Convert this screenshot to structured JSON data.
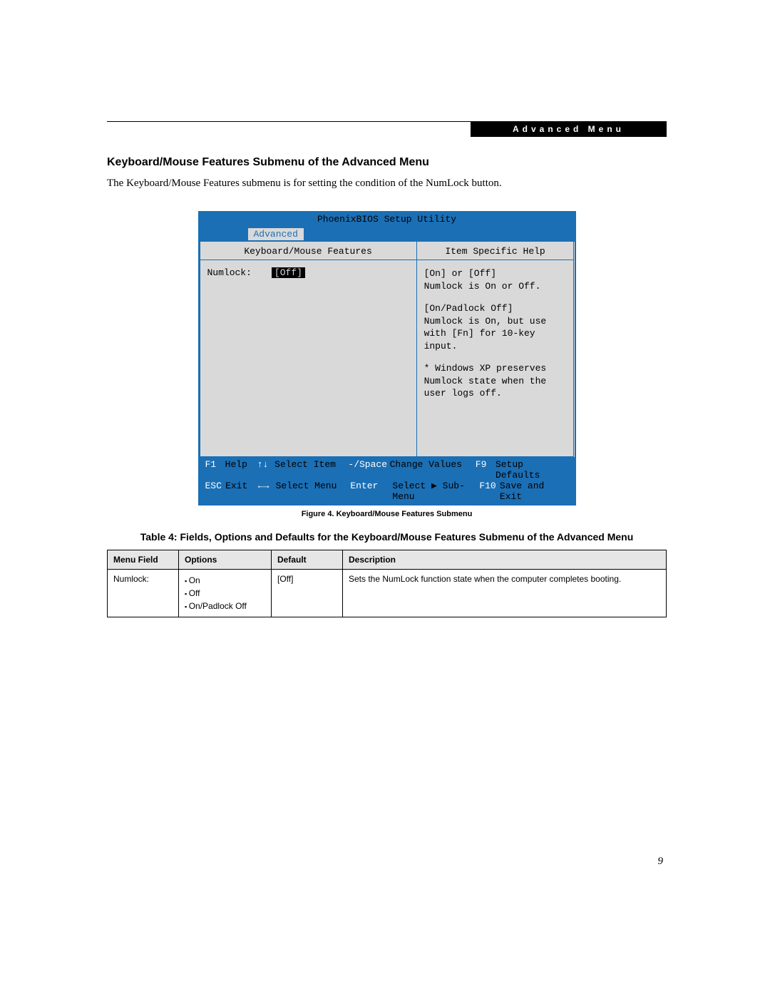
{
  "header": {
    "bar_label": "Advanced Menu"
  },
  "section": {
    "title": "Keyboard/Mouse Features Submenu of the Advanced Menu",
    "intro": "The Keyboard/Mouse Features submenu is for setting the condition of the NumLock button."
  },
  "bios": {
    "title": "PhoenixBIOS Setup Utility",
    "active_tab": "Advanced",
    "left_header": "Keyboard/Mouse Features",
    "right_header": "Item Specific Help",
    "field": {
      "label": "Numlock:",
      "value": "[Off]"
    },
    "help": {
      "block1_line1": "[On] or [Off]",
      "block1_line2": "Numlock is On or Off.",
      "block2_line1": "[On/Padlock Off]",
      "block2_line2": "Numlock is On, but use with [Fn] for 10-key input.",
      "block3": "* Windows XP preserves Numlock state when the user logs off."
    },
    "footer": {
      "r1": {
        "k1": "F1",
        "l1": "Help",
        "a1": "↑↓",
        "t1": "Select Item",
        "k2": "-/Space",
        "t2": "Change Values",
        "k3": "F9",
        "l3": "Setup Defaults"
      },
      "r2": {
        "k1": "ESC",
        "l1": "Exit",
        "a1": "←→",
        "t1": "Select Menu",
        "k2": "Enter",
        "t2": "Select ▶ Sub-Menu",
        "k3": "F10",
        "l3": "Save and Exit"
      }
    },
    "colors": {
      "border": "#1b6fb5",
      "panel": "#d9d9d9",
      "accent_text": "#ffffff"
    }
  },
  "figure_caption": "Figure 4.  Keyboard/Mouse Features Submenu",
  "table": {
    "title": "Table 4: Fields, Options and Defaults for the Keyboard/Mouse Features Submenu of the Advanced Menu",
    "columns": [
      "Menu Field",
      "Options",
      "Default",
      "Description"
    ],
    "row": {
      "menu_field": "Numlock:",
      "options": [
        "On",
        "Off",
        "On/Padlock Off"
      ],
      "default": "[Off]",
      "description": "Sets the NumLock function state when the computer completes booting."
    }
  },
  "page_number": "9"
}
